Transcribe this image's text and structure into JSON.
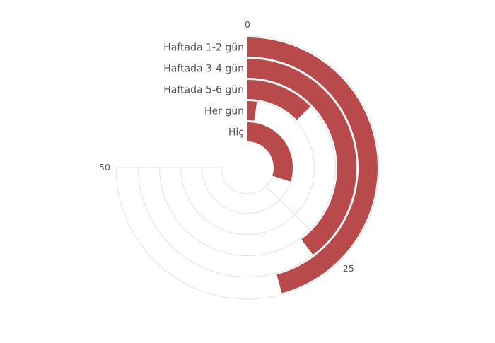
{
  "chart_data": {
    "type": "radial-bar",
    "categories": [
      "Haftada 1-2 gün",
      "Haftada 3-4 gün",
      "Haftada 5-6 gün",
      "Her gün",
      "Hiç"
    ],
    "values": [
      30.5,
      26.5,
      8.5,
      1.5,
      20
    ],
    "axis_max": 50,
    "axis_span_degrees": 270,
    "tick_values": [
      0,
      25,
      50
    ],
    "tick_labels": [
      "0",
      "25",
      "50"
    ],
    "bar_color": "#b94a4b",
    "grid_color": "#e3e3e3",
    "text_color": "#555555",
    "grid": true
  }
}
